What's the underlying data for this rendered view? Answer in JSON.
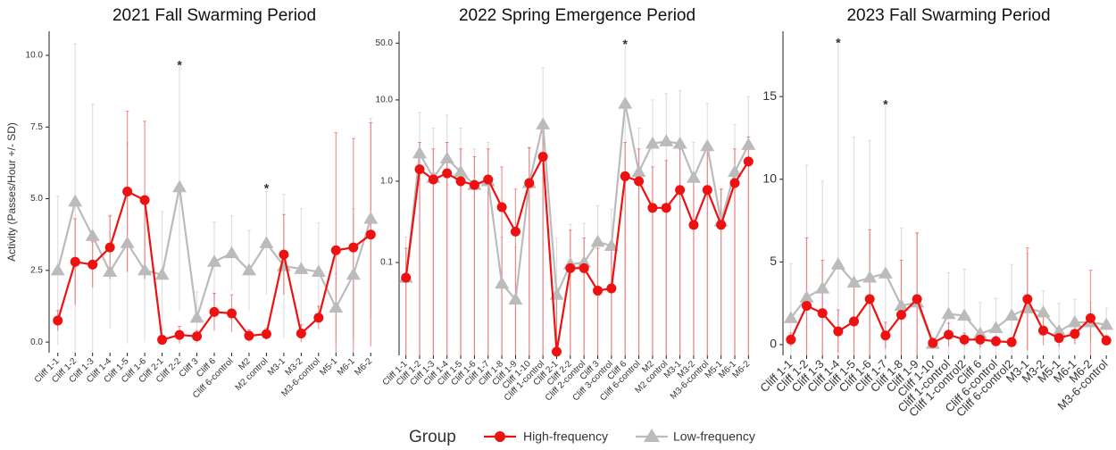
{
  "chart_data": [
    {
      "type": "line",
      "title": "2021 Fall Swarming Period",
      "ylabel": "Activity (Passes/Hour +/- SD)",
      "categories": [
        "Cliff 1-1",
        "Cliff 1-2",
        "Cliff 1-3",
        "Cliff 1-4",
        "Cliff 1-5",
        "Cliff 1-6",
        "Cliff 2-1",
        "Cliff 2-2",
        "Cliff 3",
        "Cliff 6",
        "Cliff 6-control",
        "M2",
        "M2 control",
        "M3-1",
        "M3-2",
        "M3-6-control",
        "M5-1",
        "M6-1",
        "M6-2"
      ],
      "ylim": [
        -0.37,
        10.84
      ],
      "yticks": [
        {
          "value": 0,
          "label": "0.0"
        },
        {
          "value": 2.5,
          "label": "2.5"
        },
        {
          "value": 5,
          "label": "5.0"
        },
        {
          "value": 7.5,
          "label": "7.5"
        },
        {
          "value": 10,
          "label": "10.0"
        }
      ],
      "series": [
        {
          "name": "High-frequency",
          "color": "#ee1111",
          "marker": "circle",
          "values": [
            0.75,
            2.8,
            2.7,
            3.3,
            5.25,
            4.95,
            0.08,
            0.25,
            0.2,
            1.05,
            1.0,
            0.22,
            0.28,
            3.05,
            0.3,
            0.85,
            3.2,
            3.3,
            3.75
          ],
          "errors": [
            0.35,
            1.5,
            0.8,
            1.1,
            2.8,
            2.75,
            0.1,
            0.3,
            0.2,
            0.65,
            0.65,
            0.2,
            0.2,
            1.4,
            0.3,
            0.4,
            4.1,
            3.8,
            3.9
          ]
        },
        {
          "name": "Low-frequency",
          "color": "#bbbbbb",
          "marker": "triangle",
          "values": [
            2.5,
            4.9,
            3.7,
            2.45,
            3.45,
            2.5,
            2.35,
            5.4,
            0.85,
            2.8,
            3.1,
            2.5,
            3.45,
            2.65,
            2.55,
            2.45,
            1.2,
            2.35,
            4.3
          ],
          "errors": [
            2.6,
            5.5,
            4.6,
            2.0,
            3.5,
            2.5,
            2.2,
            4.3,
            0.9,
            1.4,
            1.3,
            1.4,
            1.8,
            2.5,
            2.1,
            1.7,
            1.2,
            2.3,
            3.5
          ]
        }
      ],
      "annotations": [
        {
          "text": "*",
          "x": "Cliff 2-2",
          "y": 9.7
        },
        {
          "text": "*",
          "x": "M2 control",
          "y": 5.4
        }
      ]
    },
    {
      "type": "line",
      "title": "2022 Spring Emergence Period",
      "log_y": true,
      "categories": [
        "Cliff 1-1",
        "Cliff 1-2",
        "Cliff 1-3",
        "Cliff 1-4",
        "Cliff 1-5",
        "Cliff 1-6",
        "Cliff 1-7",
        "Cliff 1-8",
        "Cliff 1-9",
        "Cliff 1-10",
        "Cliff 1-control",
        "Cliff 2-1",
        "Cliff 2-2",
        "Cliff 2-control",
        "Cliff 3",
        "Cliff 3-control",
        "Cliff 6",
        "Cliff 6-control",
        "M2",
        "M2 control",
        "M3-1",
        "M3-2",
        "M3-6-control",
        "M5-1",
        "M6-1",
        "M6-2"
      ],
      "ylim": [
        0.0072,
        70
      ],
      "yticks": [
        0.1,
        {
          "value": 1,
          "label": "1.0"
        },
        {
          "value": 10,
          "label": "10.0"
        },
        {
          "value": 50,
          "label": "50.0"
        }
      ],
      "series": [
        {
          "name": "High-frequency",
          "color": "#ee1111",
          "marker": "circle",
          "values": [
            0.065,
            1.4,
            1.05,
            1.25,
            1.0,
            0.9,
            1.05,
            0.48,
            0.24,
            0.95,
            2.0,
            0.008,
            0.085,
            0.085,
            0.045,
            0.048,
            1.15,
            1.0,
            0.47,
            0.47,
            0.78,
            0.29,
            0.78,
            0.29,
            0.95,
            1.75
          ],
          "errors": [
            0.085,
            1.6,
            1.45,
            1.75,
            1.5,
            1.1,
            1.45,
            1.02,
            0.56,
            1.65,
            2,
            0.04,
            0.165,
            0.115,
            0.105,
            0.1,
            1.85,
            1.5,
            1.03,
            1.33,
            1.72,
            0.71,
            1.72,
            0.51,
            1.55,
            1.75
          ]
        },
        {
          "name": "Low-frequency",
          "color": "#bbbbbb",
          "marker": "triangle",
          "values": [
            0.065,
            2.2,
            1.1,
            1.9,
            1.3,
            0.9,
            1.0,
            0.055,
            0.035,
            0.95,
            5.0,
            0.04,
            0.095,
            0.1,
            0.18,
            0.16,
            9.0,
            1.3,
            2.9,
            3.1,
            2.9,
            1.1,
            2.7,
            0.32,
            1.3,
            2.8
          ],
          "errors": [
            0.14,
            4.8,
            3.4,
            4.6,
            3.2,
            1.6,
            2,
            0.15,
            0.12,
            1.6,
            20,
            0.16,
            0.2,
            0.2,
            0.32,
            0.29,
            41,
            3.2,
            7.1,
            8.9,
            10.1,
            1.9,
            6.3,
            0.48,
            3.7,
            8.2
          ]
        }
      ],
      "annotations": [
        {
          "text": "*",
          "x": "Cliff 6",
          "y": 50
        }
      ]
    },
    {
      "type": "line",
      "title": "2023 Fall Swarming Period",
      "categories": [
        "Cliff 1-1",
        "Cliff 1-2",
        "Cliff 1-3",
        "Cliff 1-4",
        "Cliff 1-5",
        "Cliff 1-6",
        "Cliff 1-7",
        "Cliff 1-8",
        "Cliff 1-9",
        "Cliff 1-10",
        "Cliff 1-control",
        "Cliff 1-control2",
        "Cliff 6",
        "Cliff 6-control",
        "Cliff 6-control2",
        "M3-1",
        "M3-2",
        "M5-1",
        "M6-1",
        "M6-2",
        "M3-6-control"
      ],
      "ylim": [
        -0.65,
        18.95
      ],
      "yticks": [
        0,
        5,
        10,
        15
      ],
      "series": [
        {
          "name": "High-frequency",
          "color": "#ee1111",
          "marker": "circle",
          "values": [
            0.3,
            2.35,
            1.9,
            0.8,
            1.4,
            2.75,
            0.55,
            1.8,
            2.75,
            0.1,
            0.6,
            0.3,
            0.3,
            0.2,
            0.15,
            2.75,
            0.85,
            0.4,
            0.65,
            1.6,
            0.25
          ],
          "errors": [
            0.4,
            4.1,
            3.2,
            1.3,
            2.2,
            4.2,
            0.8,
            3.3,
            4,
            0.15,
            0.7,
            0.4,
            0.5,
            0.3,
            0.2,
            3.1,
            0.9,
            0.5,
            0.6,
            2.9,
            0.3
          ]
        },
        {
          "name": "Low-frequency",
          "color": "#bbbbbb",
          "marker": "triangle",
          "values": [
            1.6,
            2.85,
            3.4,
            4.85,
            3.75,
            4.05,
            4.3,
            2.35,
            2.55,
            0.05,
            1.85,
            1.75,
            0.65,
            1.0,
            1.75,
            2.2,
            1.95,
            0.8,
            1.35,
            1.35,
            1.2
          ],
          "errors": [
            3.3,
            8,
            6.5,
            13.5,
            8.8,
            8.3,
            10.3,
            4.7,
            4.2,
            0.3,
            2.5,
            2.8,
            1.9,
            1.8,
            3.1,
            3.3,
            1.3,
            1.7,
            1.4,
            1.2,
            1.0
          ]
        }
      ],
      "annotations": [
        {
          "text": "*",
          "x": "Cliff 1-4",
          "y": 18.3
        },
        {
          "text": "*",
          "x": "Cliff 1-7",
          "y": 14.6
        }
      ]
    }
  ],
  "legend_title": "Group"
}
